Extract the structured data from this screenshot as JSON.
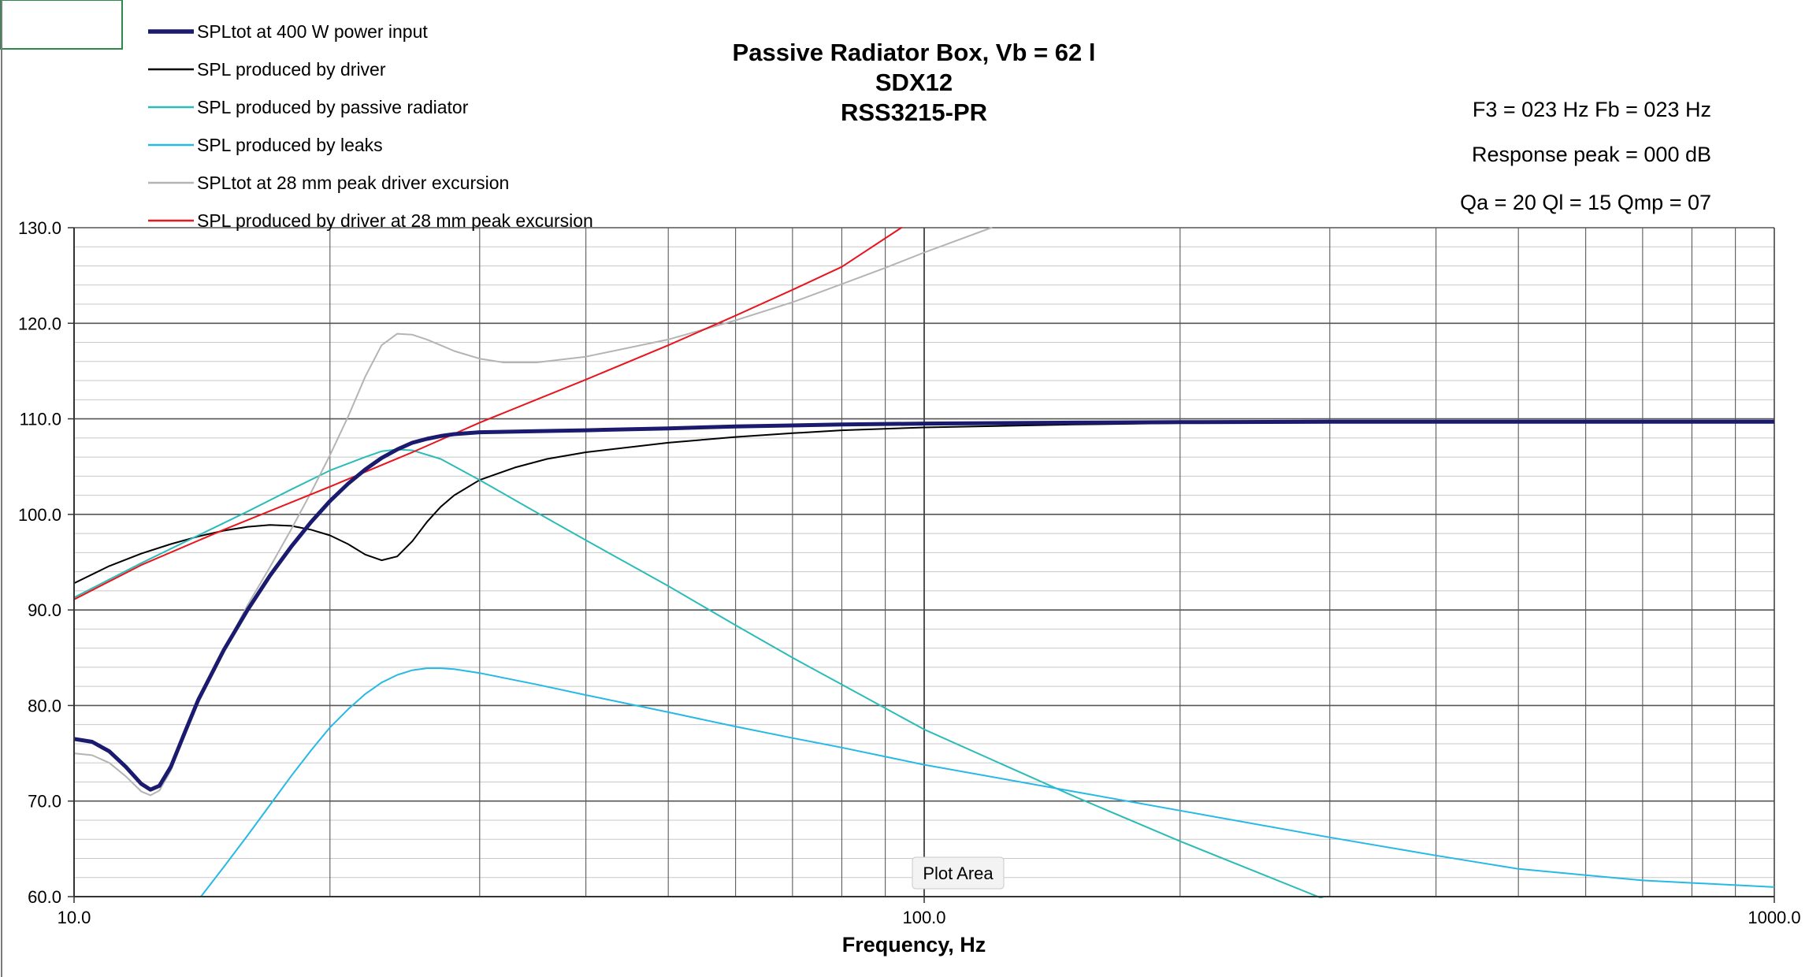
{
  "chart_data": {
    "type": "line",
    "title": [
      "Passive Radiator Box, Vb = 62 l",
      "SDX12",
      "RSS3215-PR"
    ],
    "info": [
      "F3 = 023 Hz  Fb = 023 Hz",
      "Response peak = 000 dB",
      "Qa = 20  Ql = 15  Qmp = 07"
    ],
    "xlabel": "Frequency, Hz",
    "ylabel": "",
    "x_scale": "log",
    "xlim": [
      10,
      1000
    ],
    "ylim": [
      60,
      130
    ],
    "x_ticks": [
      "10.0",
      "100.0",
      "1000.0"
    ],
    "y_ticks": [
      "60.0",
      "70.0",
      "80.0",
      "90.0",
      "100.0",
      "110.0",
      "120.0",
      "130.0"
    ],
    "grid": true,
    "legend_position": "top-left",
    "tooltip": "Plot Area",
    "series": [
      {
        "name": "SPLtot at 400 W power input",
        "color": "#1a1a6e",
        "width": 5,
        "points": [
          [
            10,
            76.5
          ],
          [
            10.5,
            76.2
          ],
          [
            11,
            75.2
          ],
          [
            11.5,
            73.6
          ],
          [
            12,
            71.8
          ],
          [
            12.3,
            71.2
          ],
          [
            12.6,
            71.6
          ],
          [
            13,
            73.6
          ],
          [
            13.5,
            77.2
          ],
          [
            14,
            80.6
          ],
          [
            15,
            85.8
          ],
          [
            16,
            90
          ],
          [
            17,
            93.6
          ],
          [
            18,
            96.6
          ],
          [
            19,
            99.2
          ],
          [
            20,
            101.4
          ],
          [
            21,
            103.2
          ],
          [
            22,
            104.7
          ],
          [
            23,
            105.9
          ],
          [
            24,
            106.8
          ],
          [
            25,
            107.5
          ],
          [
            26,
            107.9
          ],
          [
            27,
            108.2
          ],
          [
            28,
            108.4
          ],
          [
            30,
            108.6
          ],
          [
            35,
            108.7
          ],
          [
            40,
            108.8
          ],
          [
            50,
            109
          ],
          [
            60,
            109.2
          ],
          [
            80,
            109.4
          ],
          [
            100,
            109.5
          ],
          [
            150,
            109.6
          ],
          [
            200,
            109.65
          ],
          [
            300,
            109.7
          ],
          [
            500,
            109.7
          ],
          [
            1000,
            109.7
          ]
        ]
      },
      {
        "name": "SPL produced by driver",
        "color": "#000000",
        "width": 2,
        "points": [
          [
            10,
            92.8
          ],
          [
            11,
            94.6
          ],
          [
            12,
            95.9
          ],
          [
            13,
            96.9
          ],
          [
            14,
            97.7
          ],
          [
            15,
            98.3
          ],
          [
            16,
            98.7
          ],
          [
            17,
            98.9
          ],
          [
            18,
            98.8
          ],
          [
            19,
            98.4
          ],
          [
            20,
            97.8
          ],
          [
            21,
            96.9
          ],
          [
            22,
            95.8
          ],
          [
            23,
            95.2
          ],
          [
            24,
            95.6
          ],
          [
            25,
            97.2
          ],
          [
            26,
            99.2
          ],
          [
            27,
            100.8
          ],
          [
            28,
            102
          ],
          [
            30,
            103.6
          ],
          [
            33,
            104.9
          ],
          [
            36,
            105.8
          ],
          [
            40,
            106.5
          ],
          [
            50,
            107.5
          ],
          [
            60,
            108.1
          ],
          [
            70,
            108.5
          ],
          [
            80,
            108.8
          ],
          [
            100,
            109.1
          ],
          [
            150,
            109.4
          ],
          [
            200,
            109.55
          ],
          [
            300,
            109.65
          ],
          [
            500,
            109.7
          ],
          [
            1000,
            109.7
          ]
        ]
      },
      {
        "name": "SPL produced by passive radiator",
        "color": "#2bbcb8",
        "width": 2,
        "points": [
          [
            10,
            91.3
          ],
          [
            12,
            94.9
          ],
          [
            14,
            97.8
          ],
          [
            16,
            100.3
          ],
          [
            18,
            102.6
          ],
          [
            20,
            104.6
          ],
          [
            22,
            106
          ],
          [
            23,
            106.6
          ],
          [
            24,
            106.8
          ],
          [
            25,
            106.7
          ],
          [
            27,
            105.8
          ],
          [
            30,
            103.6
          ],
          [
            35,
            100.2
          ],
          [
            40,
            97.3
          ],
          [
            50,
            92.5
          ],
          [
            60,
            88.4
          ],
          [
            70,
            85
          ],
          [
            80,
            82.2
          ],
          [
            100,
            77.5
          ],
          [
            150,
            70.5
          ],
          [
            200,
            65.8
          ],
          [
            300,
            59.5
          ]
        ]
      },
      {
        "name": "SPL produced by leaks",
        "color": "#27b9e6",
        "width": 2,
        "points": [
          [
            14.1,
            60
          ],
          [
            15,
            63.1
          ],
          [
            16,
            66.4
          ],
          [
            17,
            69.6
          ],
          [
            18,
            72.6
          ],
          [
            19,
            75.3
          ],
          [
            20,
            77.7
          ],
          [
            21,
            79.6
          ],
          [
            22,
            81.2
          ],
          [
            23,
            82.4
          ],
          [
            24,
            83.2
          ],
          [
            25,
            83.7
          ],
          [
            26,
            83.9
          ],
          [
            27,
            83.9
          ],
          [
            28,
            83.8
          ],
          [
            30,
            83.4
          ],
          [
            35,
            82.2
          ],
          [
            40,
            81.1
          ],
          [
            50,
            79.3
          ],
          [
            60,
            77.8
          ],
          [
            70,
            76.6
          ],
          [
            80,
            75.6
          ],
          [
            100,
            73.8
          ],
          [
            150,
            71
          ],
          [
            200,
            69
          ],
          [
            300,
            66.2
          ],
          [
            400,
            64.3
          ],
          [
            500,
            62.9
          ],
          [
            700,
            61.7
          ],
          [
            1000,
            61
          ]
        ]
      },
      {
        "name": "SPLtot at 28 mm peak driver excursion",
        "color": "#b4b4b4",
        "width": 2,
        "points": [
          [
            10,
            75
          ],
          [
            10.5,
            74.8
          ],
          [
            11,
            74
          ],
          [
            11.5,
            72.6
          ],
          [
            12,
            71
          ],
          [
            12.3,
            70.6
          ],
          [
            12.6,
            71.1
          ],
          [
            13,
            73.2
          ],
          [
            13.5,
            77.2
          ],
          [
            14,
            80.6
          ],
          [
            15,
            85.8
          ],
          [
            16,
            90.5
          ],
          [
            17,
            94.5
          ],
          [
            18,
            98.4
          ],
          [
            19,
            102.3
          ],
          [
            20,
            106.2
          ],
          [
            21,
            110.2
          ],
          [
            22,
            114.4
          ],
          [
            23,
            117.7
          ],
          [
            24,
            118.9
          ],
          [
            25,
            118.8
          ],
          [
            26,
            118.3
          ],
          [
            27,
            117.7
          ],
          [
            28,
            117.1
          ],
          [
            30,
            116.3
          ],
          [
            32,
            115.9
          ],
          [
            35,
            115.9
          ],
          [
            40,
            116.5
          ],
          [
            50,
            118.3
          ],
          [
            60,
            120.3
          ],
          [
            70,
            122.2
          ],
          [
            80,
            124.1
          ],
          [
            90,
            125.8
          ],
          [
            100,
            127.4
          ],
          [
            120,
            130
          ]
        ]
      },
      {
        "name": "SPL produced by driver at 28 mm peak excursion",
        "color": "#e8141e",
        "width": 2,
        "points": [
          [
            10,
            91.1
          ],
          [
            12,
            94.7
          ],
          [
            15,
            98.4
          ],
          [
            20,
            102.9
          ],
          [
            25,
            106.5
          ],
          [
            30,
            109.6
          ],
          [
            40,
            114.1
          ],
          [
            50,
            117.7
          ],
          [
            60,
            120.8
          ],
          [
            70,
            123.5
          ],
          [
            80,
            125.9
          ],
          [
            94,
            130
          ]
        ]
      }
    ]
  }
}
